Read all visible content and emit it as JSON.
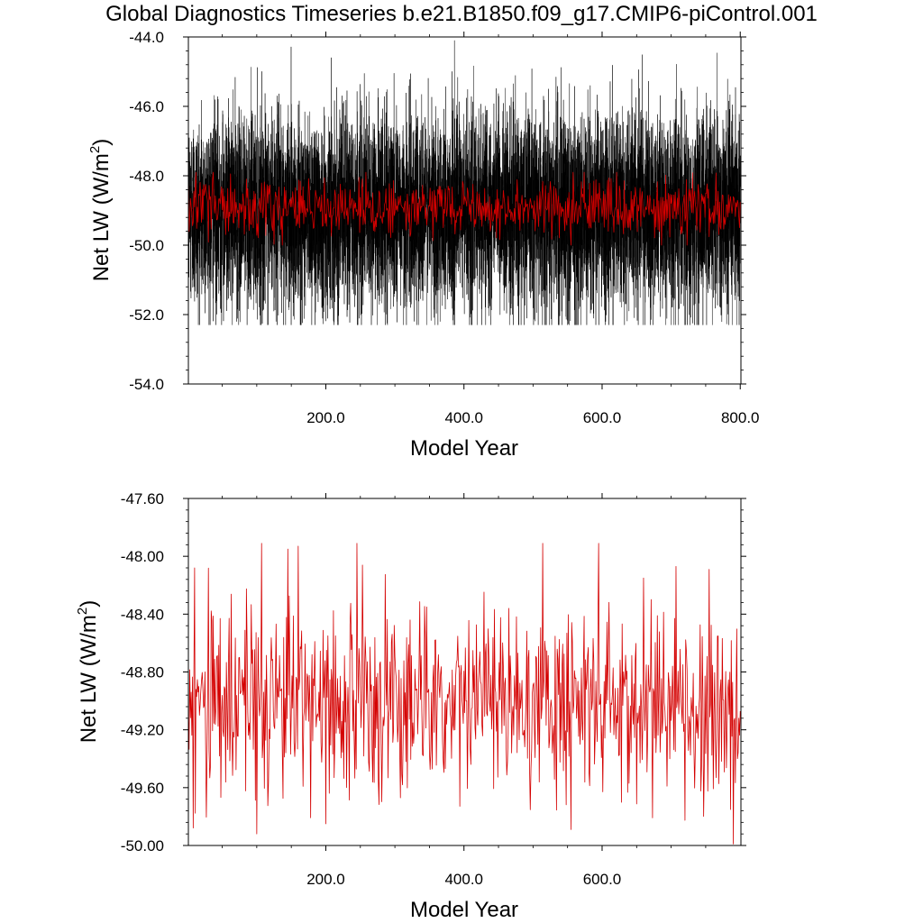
{
  "title": "Global Diagnostics Timeseries b.e21.B1850.f09_g17.CMIP6-piControl.001",
  "colors": {
    "annual_series": "#000000",
    "running_mean": "#d40000",
    "axes": "#000000",
    "background": "#ffffff"
  },
  "chart_data": [
    {
      "type": "line",
      "xlabel": "Model Year",
      "ylabel": "Net LW (W/m",
      "ylabel_superscript": "2",
      "ylabel_close": ")",
      "xlim": [
        1,
        801
      ],
      "ylim": [
        -54.0,
        -44.0
      ],
      "x_ticks": [
        "200.0",
        "400.0",
        "600.0",
        "800.0"
      ],
      "y_ticks": [
        "-54.0",
        "-52.0",
        "-50.0",
        "-48.0",
        "-46.0",
        "-44.0"
      ],
      "grid": false,
      "series": [
        {
          "color": "#000000",
          "x_start": 1,
          "x_end": 800,
          "n_points": 9600,
          "typical_range": [
            -51.2,
            -46.8
          ],
          "max": -44.1,
          "min": -52.3
        },
        {
          "color": "#d40000",
          "x_start": 1,
          "x_end": 800,
          "n_points": 800,
          "typical_range": [
            -49.6,
            -48.3
          ],
          "max": -47.9,
          "min": -50.0
        }
      ]
    },
    {
      "type": "line",
      "xlabel": "Model Year",
      "ylabel": "Net LW (W/m",
      "ylabel_superscript": "2",
      "ylabel_close": ")",
      "xlim": [
        1,
        801
      ],
      "ylim": [
        -50.0,
        -47.6
      ],
      "x_ticks": [
        "200.0",
        "400.0",
        "600.0"
      ],
      "y_ticks": [
        "-50.00",
        "-49.60",
        "-49.20",
        "-48.80",
        "-48.40",
        "-48.00",
        "-47.60"
      ],
      "grid": false,
      "series": [
        {
          "color": "#d40000",
          "x_start": 1,
          "x_end": 800,
          "n_points": 800,
          "mean": -49.0,
          "max": -47.91,
          "min": -49.99,
          "peaks": [
            [
              10,
              -48.08
            ],
            [
              145,
              -47.95
            ],
            [
              160,
              -47.93
            ],
            [
              245,
              -47.91
            ],
            [
              660,
              -48.15
            ],
            [
              755,
              -48.09
            ]
          ],
          "troughs": [
            [
              100,
              -49.92
            ],
            [
              200,
              -49.85
            ],
            [
              555,
              -49.89
            ],
            [
              790,
              -49.99
            ]
          ]
        }
      ]
    }
  ]
}
